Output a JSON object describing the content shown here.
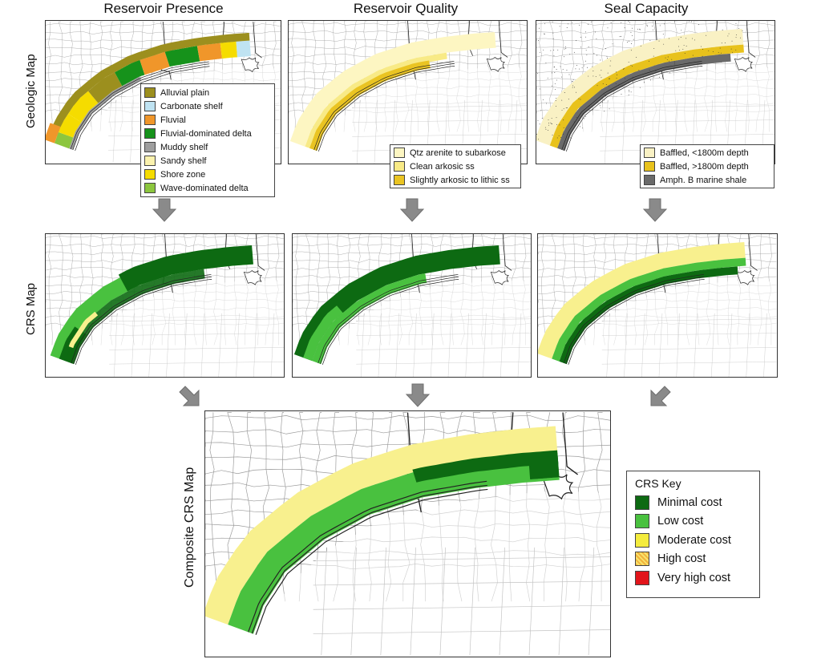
{
  "columns": {
    "reservoir_presence": "Reservoir Presence",
    "reservoir_quality": "Reservoir Quality",
    "seal_capacity": "Seal Capacity"
  },
  "rows": {
    "geologic": "Geologic Map",
    "crs": "CRS Map",
    "composite": "Composite CRS Map"
  },
  "legend_presence": [
    {
      "label": "Alluvial plain",
      "color": "#9c8f1e"
    },
    {
      "label": "Carbonate shelf",
      "color": "#bfe3f2"
    },
    {
      "label": "Fluvial",
      "color": "#f0962a"
    },
    {
      "label": "Fluvial-dominated delta",
      "color": "#16921b"
    },
    {
      "label": "Muddy shelf",
      "color": "#9e9e9e"
    },
    {
      "label": "Sandy shelf",
      "color": "#fbf2ae"
    },
    {
      "label": "Shore zone",
      "color": "#f5dc00"
    },
    {
      "label": "Wave-dominated delta",
      "color": "#8cc63e"
    }
  ],
  "legend_quality": [
    {
      "label": "Qtz arenite to subarkose",
      "color": "#fdf6c2"
    },
    {
      "label": "Clean arkosic ss",
      "color": "#f8ea86"
    },
    {
      "label": "Slightly arkosic to lithic ss",
      "color": "#eac422"
    }
  ],
  "legend_seal": [
    {
      "label": "Baffled, <1800m depth",
      "color": "#f9f1c4"
    },
    {
      "label": "Baffled, >1800m depth",
      "color": "#e8c21c"
    },
    {
      "label": "Amph. B marine shale",
      "color": "#6a6a6a"
    }
  ],
  "crs_key": {
    "title": "CRS Key",
    "items": [
      {
        "label": "Minimal cost",
        "color": "#0d6a12"
      },
      {
        "label": "Low cost",
        "color": "#49c13f"
      },
      {
        "label": "Moderate cost",
        "color": "#f4ec3d"
      },
      {
        "label": "High cost",
        "color": "#f2b23c"
      },
      {
        "label": "Very high cost",
        "color": "#e2151b"
      }
    ]
  },
  "colors": {
    "arrow": "#8a8a8a",
    "minimal": "#0d6a12",
    "low": "#49c13f",
    "moderate_band": "#f8f08e",
    "county_lines": "#9a9a9a",
    "state_lines": "#222222"
  }
}
